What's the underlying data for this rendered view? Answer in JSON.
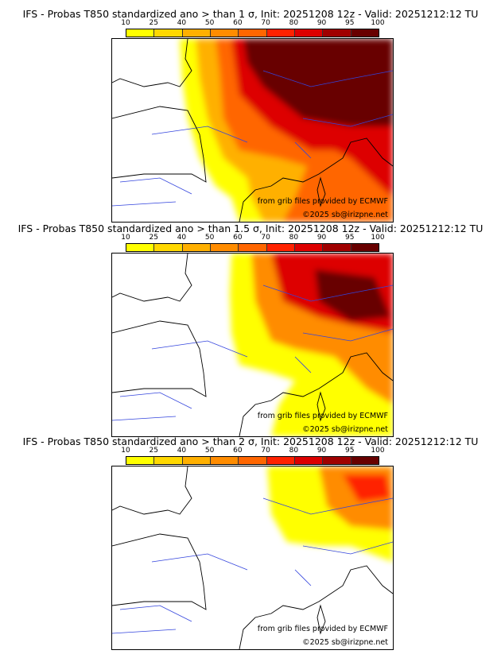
{
  "colorbar": {
    "ticks": [
      "10",
      "25",
      "40",
      "50",
      "60",
      "70",
      "80",
      "90",
      "95",
      "100"
    ],
    "colors": [
      "#ffff00",
      "#ffd800",
      "#ffb000",
      "#ff8c00",
      "#ff6600",
      "#ff2200",
      "#dd0000",
      "#a00000",
      "#680000"
    ]
  },
  "panels": [
    {
      "title": "IFS - Probas T850  standardized ano > than 1 σ, Init: 20251208 12z - Valid: 20251212:12 TU"
    },
    {
      "title": "IFS - Probas T850  standardized ano > than 1.5 σ, Init: 20251208 12z - Valid: 20251212:12 TU"
    },
    {
      "title": "IFS - Probas T850  standardized ano > than 2 σ, Init: 20251208 12z - Valid: 20251212:12 TU"
    }
  ],
  "credits": {
    "source": "from grib files provided by ECMWF",
    "copyright": "©2025 sb@irizpne.net"
  }
}
